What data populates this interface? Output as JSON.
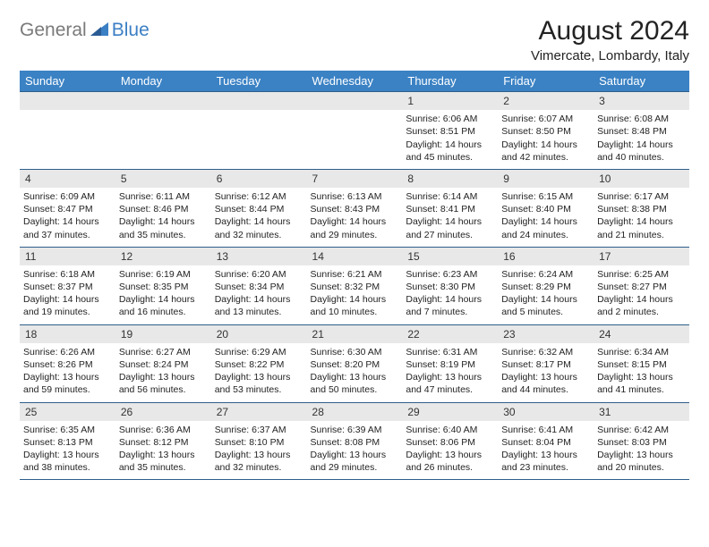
{
  "brand": {
    "text1": "General",
    "text2": "Blue"
  },
  "title": "August 2024",
  "location": "Vimercate, Lombardy, Italy",
  "colors": {
    "header_bg": "#3b82c4",
    "header_text": "#ffffff",
    "daynum_bg": "#e8e8e8",
    "border": "#2e5f8a",
    "logo_gray": "#7a7a7a",
    "logo_blue": "#3b7fc4"
  },
  "weekdays": [
    "Sunday",
    "Monday",
    "Tuesday",
    "Wednesday",
    "Thursday",
    "Friday",
    "Saturday"
  ],
  "weeks": [
    [
      null,
      null,
      null,
      null,
      {
        "n": "1",
        "sunrise": "6:06 AM",
        "sunset": "8:51 PM",
        "day_h": 14,
        "day_m": 45
      },
      {
        "n": "2",
        "sunrise": "6:07 AM",
        "sunset": "8:50 PM",
        "day_h": 14,
        "day_m": 42
      },
      {
        "n": "3",
        "sunrise": "6:08 AM",
        "sunset": "8:48 PM",
        "day_h": 14,
        "day_m": 40
      }
    ],
    [
      {
        "n": "4",
        "sunrise": "6:09 AM",
        "sunset": "8:47 PM",
        "day_h": 14,
        "day_m": 37
      },
      {
        "n": "5",
        "sunrise": "6:11 AM",
        "sunset": "8:46 PM",
        "day_h": 14,
        "day_m": 35
      },
      {
        "n": "6",
        "sunrise": "6:12 AM",
        "sunset": "8:44 PM",
        "day_h": 14,
        "day_m": 32
      },
      {
        "n": "7",
        "sunrise": "6:13 AM",
        "sunset": "8:43 PM",
        "day_h": 14,
        "day_m": 29
      },
      {
        "n": "8",
        "sunrise": "6:14 AM",
        "sunset": "8:41 PM",
        "day_h": 14,
        "day_m": 27
      },
      {
        "n": "9",
        "sunrise": "6:15 AM",
        "sunset": "8:40 PM",
        "day_h": 14,
        "day_m": 24
      },
      {
        "n": "10",
        "sunrise": "6:17 AM",
        "sunset": "8:38 PM",
        "day_h": 14,
        "day_m": 21
      }
    ],
    [
      {
        "n": "11",
        "sunrise": "6:18 AM",
        "sunset": "8:37 PM",
        "day_h": 14,
        "day_m": 19
      },
      {
        "n": "12",
        "sunrise": "6:19 AM",
        "sunset": "8:35 PM",
        "day_h": 14,
        "day_m": 16
      },
      {
        "n": "13",
        "sunrise": "6:20 AM",
        "sunset": "8:34 PM",
        "day_h": 14,
        "day_m": 13
      },
      {
        "n": "14",
        "sunrise": "6:21 AM",
        "sunset": "8:32 PM",
        "day_h": 14,
        "day_m": 10
      },
      {
        "n": "15",
        "sunrise": "6:23 AM",
        "sunset": "8:30 PM",
        "day_h": 14,
        "day_m": 7
      },
      {
        "n": "16",
        "sunrise": "6:24 AM",
        "sunset": "8:29 PM",
        "day_h": 14,
        "day_m": 5
      },
      {
        "n": "17",
        "sunrise": "6:25 AM",
        "sunset": "8:27 PM",
        "day_h": 14,
        "day_m": 2
      }
    ],
    [
      {
        "n": "18",
        "sunrise": "6:26 AM",
        "sunset": "8:26 PM",
        "day_h": 13,
        "day_m": 59
      },
      {
        "n": "19",
        "sunrise": "6:27 AM",
        "sunset": "8:24 PM",
        "day_h": 13,
        "day_m": 56
      },
      {
        "n": "20",
        "sunrise": "6:29 AM",
        "sunset": "8:22 PM",
        "day_h": 13,
        "day_m": 53
      },
      {
        "n": "21",
        "sunrise": "6:30 AM",
        "sunset": "8:20 PM",
        "day_h": 13,
        "day_m": 50
      },
      {
        "n": "22",
        "sunrise": "6:31 AM",
        "sunset": "8:19 PM",
        "day_h": 13,
        "day_m": 47
      },
      {
        "n": "23",
        "sunrise": "6:32 AM",
        "sunset": "8:17 PM",
        "day_h": 13,
        "day_m": 44
      },
      {
        "n": "24",
        "sunrise": "6:34 AM",
        "sunset": "8:15 PM",
        "day_h": 13,
        "day_m": 41
      }
    ],
    [
      {
        "n": "25",
        "sunrise": "6:35 AM",
        "sunset": "8:13 PM",
        "day_h": 13,
        "day_m": 38
      },
      {
        "n": "26",
        "sunrise": "6:36 AM",
        "sunset": "8:12 PM",
        "day_h": 13,
        "day_m": 35
      },
      {
        "n": "27",
        "sunrise": "6:37 AM",
        "sunset": "8:10 PM",
        "day_h": 13,
        "day_m": 32
      },
      {
        "n": "28",
        "sunrise": "6:39 AM",
        "sunset": "8:08 PM",
        "day_h": 13,
        "day_m": 29
      },
      {
        "n": "29",
        "sunrise": "6:40 AM",
        "sunset": "8:06 PM",
        "day_h": 13,
        "day_m": 26
      },
      {
        "n": "30",
        "sunrise": "6:41 AM",
        "sunset": "8:04 PM",
        "day_h": 13,
        "day_m": 23
      },
      {
        "n": "31",
        "sunrise": "6:42 AM",
        "sunset": "8:03 PM",
        "day_h": 13,
        "day_m": 20
      }
    ]
  ],
  "labels": {
    "sunrise": "Sunrise:",
    "sunset": "Sunset:",
    "daylight": "Daylight:",
    "hours": "hours",
    "and": "and",
    "minutes": "minutes."
  }
}
